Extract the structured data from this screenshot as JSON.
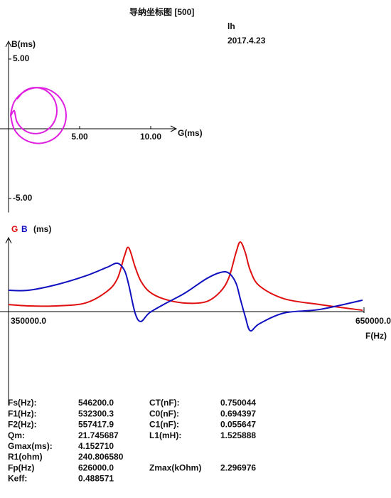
{
  "header": {
    "title": "导纳坐标图 [500]",
    "operator": "lh",
    "date": "2017.4.23"
  },
  "chart_data": [
    {
      "type": "line",
      "xlabel": "G(ms)",
      "ylabel": "B(ms)",
      "x": [
        0.15,
        0.41,
        1.13,
        2.1,
        3.08,
        3.79,
        4.05,
        3.79,
        3.08,
        2.1,
        1.13,
        0.41,
        0.15,
        0.4,
        0.6,
        1.15,
        1.9,
        2.65,
        3.2,
        3.4,
        3.2,
        2.65,
        1.9,
        1.15,
        0.6
      ],
      "series": [
        {
          "name": "B",
          "color": "#e020e0",
          "values": [
            0.95,
            -0.05,
            -0.78,
            -1.05,
            -0.78,
            -0.05,
            0.95,
            1.95,
            2.68,
            2.95,
            2.68,
            1.95,
            0.95,
            1.3,
            0.48,
            -0.13,
            -0.35,
            -0.13,
            0.48,
            1.3,
            2.13,
            2.73,
            2.95,
            2.73,
            2.13
          ]
        }
      ],
      "xlim": [
        0,
        11.8
      ],
      "ylim": [
        -6,
        6
      ],
      "xticks": [
        {
          "value": 5,
          "label": "5.00"
        },
        {
          "value": 10,
          "label": "10.00"
        }
      ],
      "yticks": [
        {
          "value": 5,
          "label": "5.00"
        },
        {
          "value": -5,
          "label": "-5.00"
        }
      ]
    },
    {
      "type": "line",
      "ylabel": "(ms)",
      "xlabel": "F(Hz)",
      "x": [
        350000,
        366800,
        390800,
        414800,
        432800,
        441800,
        447800,
        451400,
        456800,
        461600,
        468800,
        480800,
        498800,
        516800,
        528800,
        536000,
        542000,
        545600,
        549800,
        554000,
        561800,
        582800,
        612800,
        648800
      ],
      "series": [
        {
          "name": "G",
          "color": "#e01010",
          "values": [
            0.42,
            0.34,
            0.34,
            0.51,
            1.19,
            1.95,
            3.31,
            3.81,
            2.67,
            1.83,
            1.19,
            0.76,
            0.51,
            0.59,
            1.19,
            2.03,
            3.52,
            4.15,
            3.52,
            2.46,
            1.53,
            0.76,
            0.42,
            0.08
          ]
        },
        {
          "name": "B",
          "color": "#1010c0",
          "values": [
            1.27,
            1.27,
            1.61,
            2.12,
            2.63,
            2.88,
            2.46,
            1.61,
            -0.08,
            -0.59,
            -0.08,
            0.42,
            1.1,
            1.95,
            2.33,
            2.29,
            1.69,
            0.76,
            -0.3,
            -1.14,
            -0.72,
            -0.08,
            0.13,
            0.68
          ]
        }
      ],
      "xlim": [
        350000,
        650000
      ],
      "ylim": [
        -5.4,
        4.2
      ],
      "xticks": [
        {
          "value": 350000,
          "label": "350000.0"
        },
        {
          "value": 650000,
          "label": "650000.0"
        }
      ]
    }
  ],
  "parameters_left": [
    {
      "label": "Fs(Hz):",
      "value": "546200.0"
    },
    {
      "label": "F1(Hz):",
      "value": "532300.3"
    },
    {
      "label": "F2(Hz):",
      "value": "557417.9"
    },
    {
      "label": "Qm:",
      "value": "21.745687"
    },
    {
      "label": "Gmax(ms):",
      "value": "4.152710"
    },
    {
      "label": "R1(ohm)",
      "value": "240.806580"
    },
    {
      "label": "Fp(Hz)",
      "value": "626000.0"
    },
    {
      "label": "Keff:",
      "value": "0.488571"
    }
  ],
  "parameters_right": [
    {
      "label": "CT(nF):",
      "value": "0.750044"
    },
    {
      "label": "C0(nF):",
      "value": "0.694397"
    },
    {
      "label": "C1(nF):",
      "value": "0.055647"
    },
    {
      "label": "L1(mH):",
      "value": "1.525888"
    },
    {
      "label": "Zmax(kOhm)",
      "value": "2.296976"
    }
  ]
}
